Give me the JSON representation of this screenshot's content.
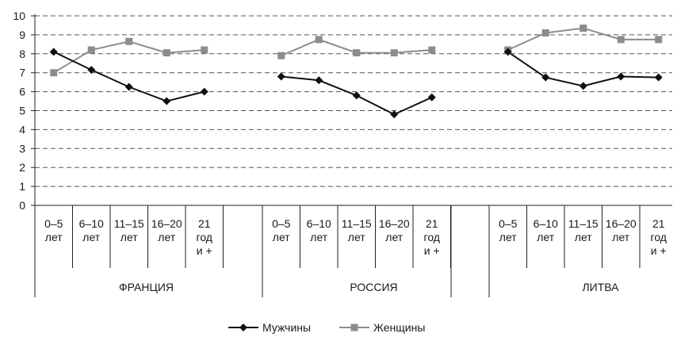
{
  "chart_data": {
    "type": "line",
    "ylim": [
      0,
      10
    ],
    "yticks": [
      "0",
      "1",
      "2",
      "3",
      "4",
      "5",
      "6",
      "7",
      "8",
      "9",
      "10"
    ],
    "grid": "dashed horizontal",
    "groups": [
      {
        "name": "ФРАНЦИЯ",
        "categories": [
          [
            "0–5",
            "лет"
          ],
          [
            "6–10",
            "лет"
          ],
          [
            "11–15",
            "лет"
          ],
          [
            "16–20",
            "лет"
          ],
          [
            "21",
            "год",
            "и +"
          ]
        ],
        "men": [
          8.1,
          7.15,
          6.25,
          5.5,
          6.0
        ],
        "women": [
          7.0,
          8.2,
          8.65,
          8.05,
          8.2
        ]
      },
      {
        "name": "РОССИЯ",
        "categories": [
          [
            "0–5",
            "лет"
          ],
          [
            "6–10",
            "лет"
          ],
          [
            "11–15",
            "лет"
          ],
          [
            "16–20",
            "лет"
          ],
          [
            "21",
            "год",
            "и +"
          ]
        ],
        "men": [
          6.8,
          6.6,
          5.8,
          4.8,
          5.7
        ],
        "women": [
          7.9,
          8.75,
          8.05,
          8.05,
          8.2
        ]
      },
      {
        "name": "ЛИТВА",
        "categories": [
          [
            "0–5",
            "лет"
          ],
          [
            "6–10",
            "лет"
          ],
          [
            "11–15",
            "лет"
          ],
          [
            "16–20",
            "лет"
          ],
          [
            "21",
            "год",
            "и +"
          ]
        ],
        "men": [
          8.1,
          6.75,
          6.3,
          6.8,
          6.75
        ],
        "women": [
          8.2,
          9.1,
          9.35,
          8.75,
          8.75
        ]
      }
    ],
    "series": [
      {
        "name": "Мужчины",
        "key": "men",
        "color": "#111111",
        "marker": "diamond"
      },
      {
        "name": "Женщины",
        "key": "women",
        "color": "#8c8c8c",
        "marker": "square"
      }
    ],
    "legend_position": "bottom-center"
  }
}
